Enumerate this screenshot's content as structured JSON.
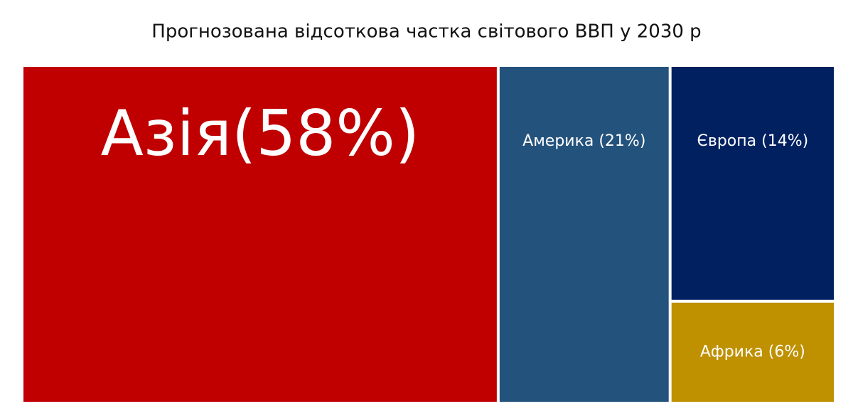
{
  "chart_data": {
    "type": "treemap",
    "title": "Прогнозована відсоткова частка світового ВВП у 2030 р",
    "categories": [
      "Азія(58%)",
      "Америка (21%)",
      "Європа (14%)",
      "Африка (6%)"
    ],
    "values": [
      58,
      21,
      14,
      6
    ],
    "colors": [
      "#c00000",
      "#23527c",
      "#002060",
      "#bf9000"
    ]
  }
}
